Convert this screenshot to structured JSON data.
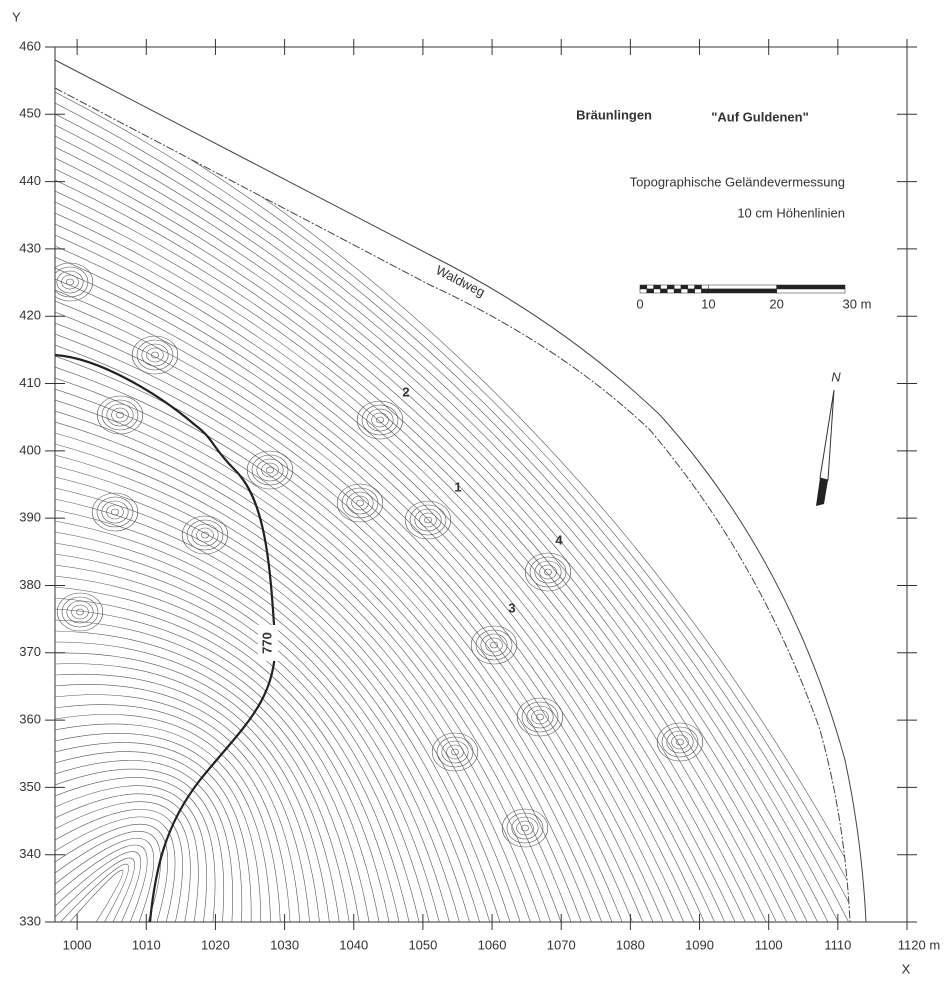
{
  "map": {
    "title": "Bräunlingen",
    "subtitle": "\"Auf Guldenen\"",
    "caption1": "Topographische Geländevermessung",
    "caption2": "10 cm Höhenlinien",
    "road_label": "Waldweg",
    "contour_label": "770",
    "point_labels": [
      "1",
      "2",
      "3",
      "4"
    ],
    "north": "N",
    "x_axis_label": "X",
    "y_axis_label": "Y",
    "xlim": [
      996.8,
      1120
    ],
    "xticks": [
      1000,
      1010,
      1020,
      1030,
      1040,
      1050,
      1060,
      1070,
      1080,
      1090,
      1100,
      1110,
      {
        "value": 1120,
        "label": "1120 m"
      }
    ],
    "ylim": [
      330,
      460
    ],
    "yticks": [
      330,
      340,
      350,
      360,
      370,
      380,
      390,
      400,
      410,
      420,
      430,
      440,
      450,
      460
    ],
    "scale_bar": {
      "labels": [
        "0",
        "10",
        "20",
        "30 m"
      ]
    }
  }
}
